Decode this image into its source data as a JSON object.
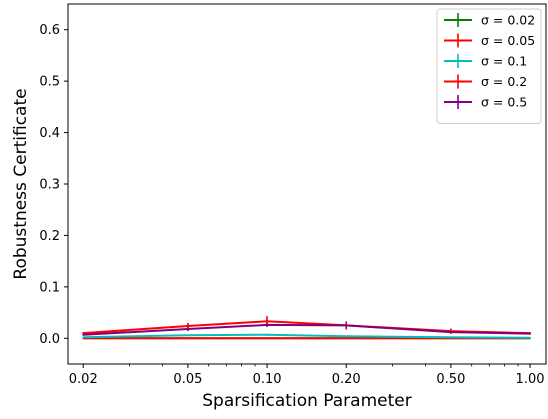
{
  "chart_data": {
    "type": "line",
    "title": "",
    "xlabel": "Sparsification Parameter",
    "ylabel": "Robustness Certificate",
    "xscale": "log",
    "xlim": [
      0.0175,
      1.15
    ],
    "ylim": [
      -0.05,
      0.65
    ],
    "x_ticks": [
      0.02,
      0.05,
      0.1,
      0.2,
      0.5,
      1.0
    ],
    "x_tick_labels": [
      "0.02",
      "0.05",
      "0.10",
      "0.20",
      "0.50",
      "1.00"
    ],
    "y_ticks": [
      0.0,
      0.1,
      0.2,
      0.3,
      0.4,
      0.5,
      0.6
    ],
    "y_tick_labels": [
      "0.0",
      "0.1",
      "0.2",
      "0.3",
      "0.4",
      "0.5",
      "0.6"
    ],
    "grid": false,
    "legend_position": "top-right",
    "x": [
      0.02,
      0.05,
      0.1,
      0.2,
      0.5,
      1.0
    ],
    "series": [
      {
        "name": "σ = 0.02",
        "color": "#008000",
        "values": [
          0.0,
          0.0,
          0.0,
          0.0,
          0.0,
          0.0
        ],
        "errors": [
          0.0,
          0.0,
          0.0,
          0.0,
          0.0,
          0.0
        ]
      },
      {
        "name": "σ = 0.05",
        "color": "#ff0000",
        "values": [
          0.0,
          0.0,
          0.0,
          0.0,
          0.0,
          0.0
        ],
        "errors": [
          0.0,
          0.0,
          0.0,
          0.0,
          0.0,
          0.0
        ]
      },
      {
        "name": "σ = 0.1",
        "color": "#00bfbf",
        "values": [
          0.002,
          0.006,
          0.007,
          0.004,
          0.002,
          0.001
        ],
        "errors": [
          0.0,
          0.0,
          0.002,
          0.0,
          0.0,
          0.0
        ]
      },
      {
        "name": "σ = 0.2",
        "color": "#ff0000",
        "values": [
          0.01,
          0.024,
          0.033,
          0.025,
          0.014,
          0.01
        ],
        "errors": [
          0.002,
          0.006,
          0.01,
          0.008,
          0.005,
          0.002
        ]
      },
      {
        "name": "σ = 0.5",
        "color": "#800080",
        "values": [
          0.007,
          0.018,
          0.026,
          0.025,
          0.012,
          0.009
        ],
        "errors": [
          0.002,
          0.004,
          0.004,
          0.004,
          0.003,
          0.002
        ]
      }
    ]
  }
}
